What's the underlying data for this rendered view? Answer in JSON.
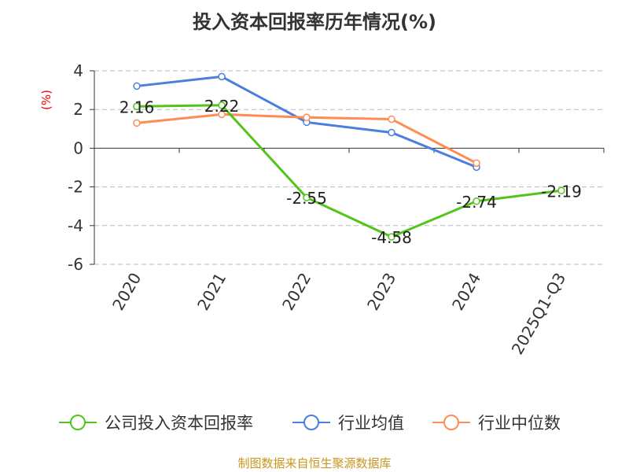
{
  "chart_data": {
    "type": "line",
    "title": "投入资本回报率历年情况(%)",
    "ylabel": "(%)",
    "categories": [
      "2020",
      "2021",
      "2022",
      "2023",
      "2024",
      "2025Q1-Q3"
    ],
    "ylim": [
      -6,
      4
    ],
    "yticks": [
      4,
      2,
      0,
      -2,
      -4,
      -6
    ],
    "grid": true,
    "legend_position": "bottom",
    "series": [
      {
        "name": "公司投入资本回报率",
        "color": "#52c41a",
        "values": [
          2.16,
          2.22,
          -2.55,
          -4.58,
          -2.74,
          -2.19
        ],
        "labels": [
          "2.16",
          "2.22",
          "-2.55",
          "-4.58",
          "-2.74",
          "-2.19"
        ]
      },
      {
        "name": "行业均值",
        "color": "#4a7fe0",
        "values": [
          3.21,
          3.7,
          1.34,
          0.81,
          -0.98,
          null
        ]
      },
      {
        "name": "行业中位数",
        "color": "#ff8c55",
        "values": [
          1.3,
          1.75,
          1.59,
          1.5,
          -0.77,
          null
        ]
      }
    ]
  },
  "source": "制图数据来自恒生聚源数据库"
}
